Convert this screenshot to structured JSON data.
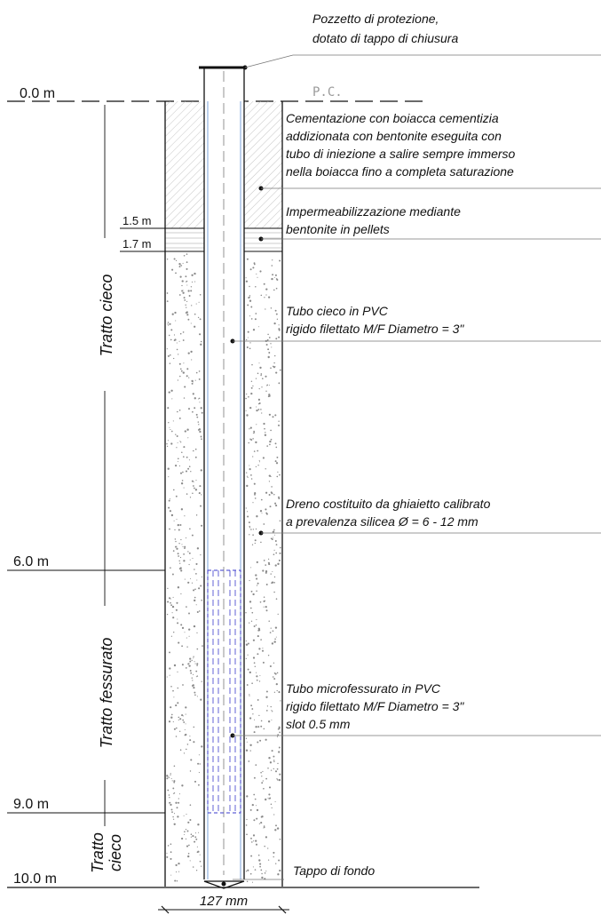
{
  "depths": {
    "d0": "0.0 m",
    "d15": "1.5 m",
    "d17": "1.7 m",
    "d6": "6.0 m",
    "d9": "9.0 m",
    "d10": "10.0 m"
  },
  "ground_label": "P.C.",
  "sections": {
    "top_blind": "Tratto cieco",
    "slotted": "Tratto fessurato",
    "bottom_blind_line1": "Tratto",
    "bottom_blind_line2": "cieco"
  },
  "notes": {
    "well_cap": [
      "Pozzetto di protezione,",
      "dotato di tappo di chiusura"
    ],
    "cementation": [
      "Cementazione con boiacca cementizia",
      "addizionata con bentonite eseguita con",
      "tubo di iniezione a salire sempre immerso",
      "nella boiacca fino a completa saturazione"
    ],
    "sealing": [
      "Impermeabilizzazione mediante",
      "bentonite in pellets"
    ],
    "blind_pipe": [
      "Tubo cieco in PVC",
      "rigido filettato M/F Diametro = 3\""
    ],
    "drain": [
      "Dreno costituito da  ghiaietto calibrato",
      "a prevalenza silicea Ø = 6 - 12 mm"
    ],
    "slotted_pipe": [
      "Tubo microfessurato in PVC",
      "rigido filettato M/F Diametro = 3\"",
      "slot 0.5 mm"
    ],
    "bottom_cap": [
      "Tappo di fondo"
    ]
  },
  "diameter": "127 mm",
  "colors": {
    "line": "#111111",
    "pipe": "#7aa0d8",
    "slots": "#3a3acc",
    "hatch": "#b5b5b5",
    "gravel": "#8a8a8a",
    "leader": "#777777"
  }
}
